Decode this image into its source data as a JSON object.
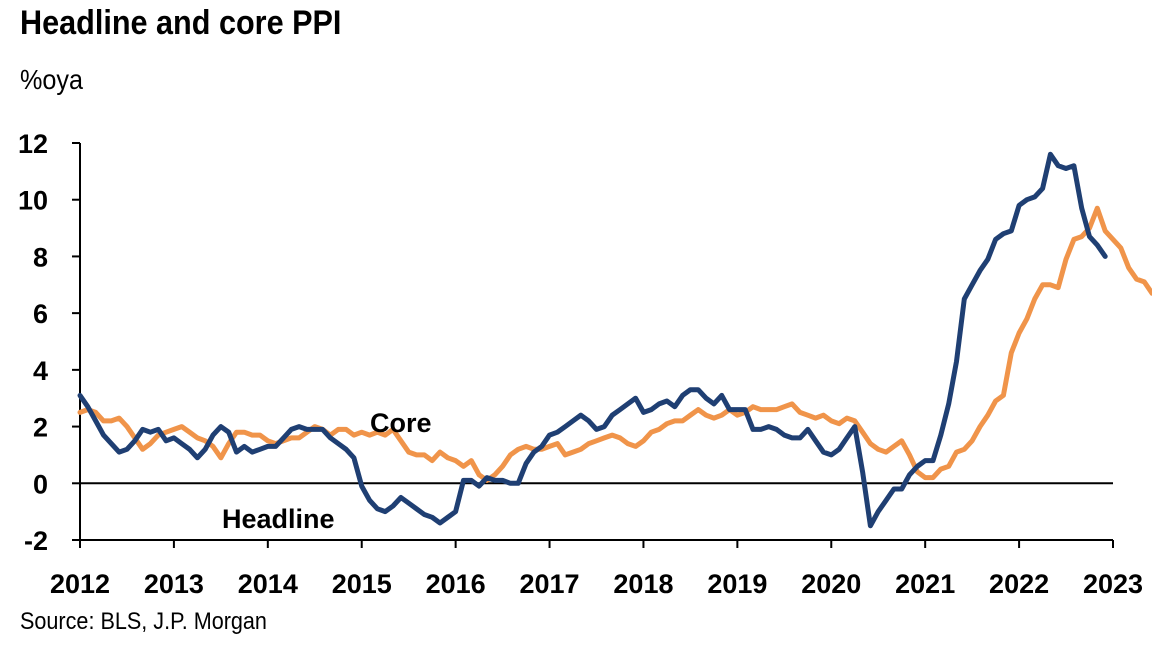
{
  "title": "Headline and core PPI",
  "subtitle": "%oya",
  "source": "Source: BLS, J.P. Morgan",
  "colors": {
    "headline": "#1f3f73",
    "core": "#f0944a",
    "axis": "#000000"
  },
  "chart_data": {
    "type": "line",
    "title": "Headline and core PPI",
    "ylabel": "%oya",
    "ylim": [
      -2,
      12
    ],
    "xlim": [
      2012,
      2023
    ],
    "yticks": [
      -2,
      0,
      2,
      4,
      6,
      8,
      10,
      12
    ],
    "xticks": [
      2012,
      2013,
      2014,
      2015,
      2016,
      2017,
      2018,
      2019,
      2020,
      2021,
      2022,
      2023
    ],
    "grid": false,
    "x_start": "2012-01",
    "frequency": "monthly",
    "series": [
      {
        "name": "Headline",
        "color": "#1f3f73",
        "values": [
          3.1,
          2.7,
          2.2,
          1.7,
          1.4,
          1.1,
          1.2,
          1.5,
          1.9,
          1.8,
          1.9,
          1.5,
          1.6,
          1.4,
          1.2,
          0.9,
          1.2,
          1.7,
          2.0,
          1.8,
          1.1,
          1.3,
          1.1,
          1.2,
          1.3,
          1.3,
          1.6,
          1.9,
          2.0,
          1.9,
          1.9,
          1.9,
          1.6,
          1.4,
          1.2,
          0.9,
          -0.1,
          -0.6,
          -0.9,
          -1.0,
          -0.8,
          -0.5,
          -0.7,
          -0.9,
          -1.1,
          -1.2,
          -1.4,
          -1.2,
          -1.0,
          0.1,
          0.1,
          -0.1,
          0.2,
          0.1,
          0.1,
          0.0,
          0.0,
          0.7,
          1.1,
          1.3,
          1.7,
          1.8,
          2.0,
          2.2,
          2.4,
          2.2,
          1.9,
          2.0,
          2.4,
          2.6,
          2.8,
          3.0,
          2.5,
          2.6,
          2.8,
          2.9,
          2.7,
          3.1,
          3.3,
          3.3,
          3.0,
          2.8,
          3.1,
          2.6,
          2.6,
          2.6,
          1.9,
          1.9,
          2.0,
          1.9,
          1.7,
          1.6,
          1.6,
          1.9,
          1.5,
          1.1,
          1.0,
          1.2,
          1.6,
          2.0,
          0.4,
          -1.5,
          -1.0,
          -0.6,
          -0.2,
          -0.2,
          0.3,
          0.6,
          0.8,
          0.8,
          1.7,
          2.8,
          4.3,
          6.5,
          7.0,
          7.5,
          7.9,
          8.6,
          8.8,
          8.9,
          9.8,
          10.0,
          10.1,
          10.4,
          11.6,
          11.2,
          11.1,
          11.2,
          9.7,
          8.7,
          8.4,
          8.0
        ]
      },
      {
        "name": "Core",
        "color": "#f0944a",
        "values": [
          2.5,
          2.6,
          2.5,
          2.2,
          2.2,
          2.3,
          2.0,
          1.6,
          1.2,
          1.4,
          1.7,
          1.8,
          1.9,
          2.0,
          1.8,
          1.6,
          1.5,
          1.3,
          0.9,
          1.4,
          1.8,
          1.8,
          1.7,
          1.7,
          1.5,
          1.4,
          1.5,
          1.6,
          1.6,
          1.8,
          2.0,
          1.9,
          1.7,
          1.9,
          1.9,
          1.7,
          1.8,
          1.7,
          1.8,
          1.7,
          1.9,
          1.5,
          1.1,
          1.0,
          1.0,
          0.8,
          1.1,
          0.9,
          0.8,
          0.6,
          0.8,
          0.3,
          0.1,
          0.3,
          0.6,
          1.0,
          1.2,
          1.3,
          1.2,
          1.2,
          1.3,
          1.4,
          1.0,
          1.1,
          1.2,
          1.4,
          1.5,
          1.6,
          1.7,
          1.6,
          1.4,
          1.3,
          1.5,
          1.8,
          1.9,
          2.1,
          2.2,
          2.2,
          2.4,
          2.6,
          2.4,
          2.3,
          2.4,
          2.6,
          2.4,
          2.5,
          2.7,
          2.6,
          2.6,
          2.6,
          2.7,
          2.8,
          2.5,
          2.4,
          2.3,
          2.4,
          2.2,
          2.1,
          2.3,
          2.2,
          1.8,
          1.4,
          1.2,
          1.1,
          1.3,
          1.5,
          1.0,
          0.4,
          0.2,
          0.2,
          0.5,
          0.6,
          1.1,
          1.2,
          1.5,
          2.0,
          2.4,
          2.9,
          3.1,
          4.6,
          5.3,
          5.8,
          6.5,
          7.0,
          7.0,
          6.9,
          7.9,
          8.6,
          8.7,
          9.0,
          9.7,
          8.9,
          8.6,
          8.3,
          7.6,
          7.2,
          7.1,
          6.7
        ]
      }
    ],
    "annotations": [
      {
        "text": "Core",
        "series": "Core"
      },
      {
        "text": "Headline",
        "series": "Headline"
      }
    ]
  }
}
